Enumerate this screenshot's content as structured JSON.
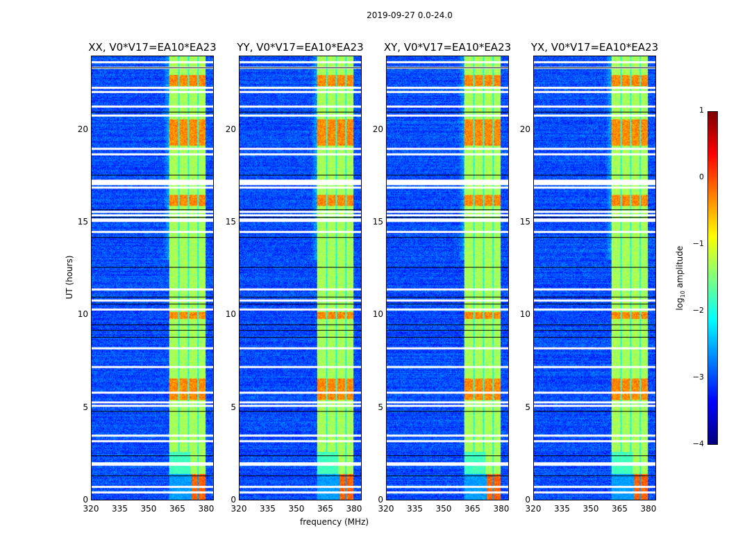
{
  "chart_data": {
    "type": "heatmap",
    "suptitle": "2019-09-27 0.0-24.0",
    "panels": [
      {
        "title": "XX, V0*V17=EA10*EA23"
      },
      {
        "title": "YY, V0*V17=EA10*EA23"
      },
      {
        "title": "XY, V0*V17=EA10*EA23"
      },
      {
        "title": "YX, V0*V17=EA10*EA23"
      }
    ],
    "xlabel": "frequency (MHz)",
    "ylabel": "UT (hours)",
    "xlim": [
      320,
      384
    ],
    "ylim": [
      0,
      24
    ],
    "xticks": [
      "320",
      "335",
      "350",
      "365",
      "380"
    ],
    "xtick_values": [
      320,
      335,
      350,
      365,
      380
    ],
    "yticks": [
      "0",
      "5",
      "10",
      "15",
      "20"
    ],
    "ytick_values": [
      0,
      5,
      10,
      15,
      20
    ],
    "colorbar": {
      "label": "log10 amplitude",
      "label_main": "log",
      "label_sub": "10",
      "label_rest": " amplitude",
      "range": [
        -4,
        1
      ],
      "ticks": [
        "1",
        "0",
        "−1",
        "−2",
        "−3",
        "−4"
      ],
      "tick_values": [
        1,
        0,
        -1,
        -2,
        -3,
        -4
      ],
      "colormap": "jet"
    },
    "rfi_band_mhz": [
      360.5,
      380
    ],
    "band_gaps_mhz": [
      365.8,
      370.8,
      375.8
    ],
    "flagged_hours": [
      23.7,
      23.4,
      22.3,
      22.1,
      21.3,
      20.8,
      19.0,
      18.7,
      17.3,
      17.2,
      17.1,
      16.9,
      15.6,
      15.4,
      15.2,
      15.1,
      14.5,
      11.4,
      10.8,
      10.3,
      8.2,
      7.2,
      5.8,
      5.3,
      5.1,
      3.5,
      3.2,
      2.0,
      1.9,
      0.7,
      0.4
    ],
    "strong_hours": [
      [
        19.2,
        20.6
      ],
      [
        22.4,
        23.0
      ],
      [
        15.9,
        16.5
      ],
      [
        9.8,
        10.2
      ],
      [
        5.4,
        6.6
      ]
    ]
  }
}
